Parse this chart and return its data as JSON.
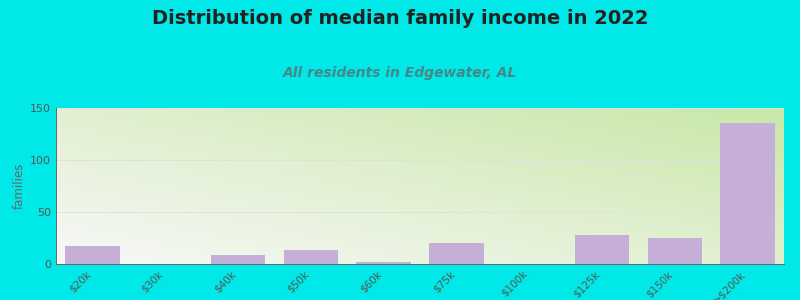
{
  "title": "Distribution of median family income in 2022",
  "subtitle": "All residents in Edgewater, AL",
  "categories": [
    "$20k",
    "$30k",
    "$40k",
    "$50k",
    "$60k",
    "$75k",
    "$100k",
    "$125k",
    "$150k",
    ">$200k"
  ],
  "values": [
    17,
    0,
    9,
    13,
    2,
    20,
    0,
    28,
    25,
    136
  ],
  "bar_color": "#c5afd6",
  "bar_edgecolor": "#c5afd6",
  "background_color": "#00e8e8",
  "plot_bg_gradient_start": "#c8e8a8",
  "plot_bg_gradient_end": "#f8f8f8",
  "title_fontsize": 14,
  "subtitle_fontsize": 10,
  "ylabel": "families",
  "ylim": [
    0,
    150
  ],
  "yticks": [
    0,
    50,
    100,
    150
  ],
  "title_color": "#222222",
  "subtitle_color": "#448888",
  "axis_color": "#666666",
  "tick_label_color": "#555555",
  "grid_color": "#e0e0e0"
}
